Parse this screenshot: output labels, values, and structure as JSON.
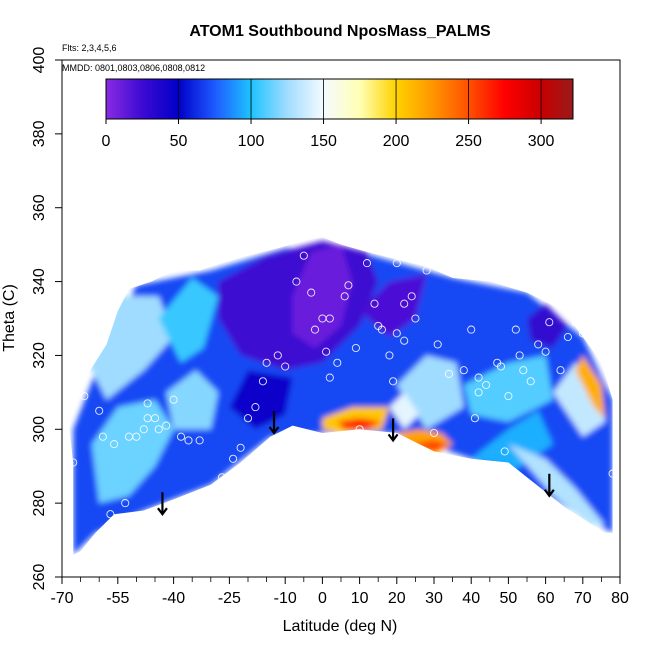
{
  "chart_data": {
    "type": "heatmap",
    "title": "ATOM1 Southbound NposMass_PALMS",
    "annotations": {
      "flights": "Flts: 2,3,4,5,6",
      "dates": "MMDD: 0801,0803,0806,0808,0812"
    },
    "xlabel": "Latitude (deg N)",
    "ylabel": "Theta (C)",
    "xlim": [
      -70,
      80
    ],
    "ylim": [
      260,
      400
    ],
    "x_ticks_major": [
      -70,
      -55,
      -40,
      -25,
      -10,
      0,
      10,
      20,
      30,
      40,
      50,
      60,
      70,
      80
    ],
    "x_ticks_minor": [
      -65,
      -60,
      -50,
      -45,
      -35,
      -30,
      -20,
      -15,
      -5,
      5,
      15,
      25,
      35,
      45,
      55,
      65,
      75
    ],
    "x_tick_labels": [
      "-70",
      "-55",
      "-40",
      "-25",
      "-10",
      "0",
      "10",
      "20",
      "30",
      "40",
      "50",
      "60",
      "70",
      "80"
    ],
    "y_ticks": [
      260,
      280,
      300,
      320,
      340,
      360,
      380,
      400
    ],
    "y_tick_labels": [
      "260",
      "280",
      "300",
      "320",
      "340",
      "360",
      "380",
      "400"
    ],
    "colorbar": {
      "range": [
        0,
        322
      ],
      "ticks": [
        0,
        50,
        100,
        150,
        200,
        250,
        300
      ],
      "tick_labels": [
        "0",
        "50",
        "100",
        "150",
        "200",
        "250",
        "300"
      ],
      "stops": [
        {
          "value": 0,
          "color": "#8a2be2"
        },
        {
          "value": 25,
          "color": "#3c0ad2"
        },
        {
          "value": 50,
          "color": "#0000c8"
        },
        {
          "value": 75,
          "color": "#1e5aff"
        },
        {
          "value": 100,
          "color": "#1ec3ff"
        },
        {
          "value": 125,
          "color": "#a0dcff"
        },
        {
          "value": 150,
          "color": "#f5fbff"
        },
        {
          "value": 175,
          "color": "#ffffb4"
        },
        {
          "value": 200,
          "color": "#ffd200"
        },
        {
          "value": 225,
          "color": "#ff9600"
        },
        {
          "value": 250,
          "color": "#ff5000"
        },
        {
          "value": 275,
          "color": "#ff0000"
        },
        {
          "value": 300,
          "color": "#c80000"
        },
        {
          "value": 322,
          "color": "#9a1a1a"
        }
      ]
    },
    "arrows": [
      {
        "lat": -43,
        "theta": 277
      },
      {
        "lat": -13,
        "theta": 299
      },
      {
        "lat": 19,
        "theta": 297
      },
      {
        "lat": 61,
        "theta": 282
      }
    ],
    "data_boundary": [
      [
        -67,
        266
      ],
      [
        -67,
        291
      ],
      [
        -68,
        300
      ],
      [
        -66,
        313
      ],
      [
        -63,
        315
      ],
      [
        -58,
        323
      ],
      [
        -55,
        332
      ],
      [
        -52,
        338
      ],
      [
        -46,
        340
      ],
      [
        -40,
        343
      ],
      [
        -33,
        343
      ],
      [
        -27,
        345
      ],
      [
        -20,
        347
      ],
      [
        -12,
        349
      ],
      [
        -5,
        351
      ],
      [
        0,
        352
      ],
      [
        5,
        350
      ],
      [
        12,
        348
      ],
      [
        20,
        346
      ],
      [
        28,
        344
      ],
      [
        35,
        341
      ],
      [
        45,
        340
      ],
      [
        55,
        337
      ],
      [
        65,
        332
      ],
      [
        70,
        325
      ],
      [
        75,
        318
      ],
      [
        78,
        308
      ],
      [
        78,
        290
      ],
      [
        78,
        272
      ],
      [
        76,
        272
      ],
      [
        65,
        279
      ],
      [
        50,
        291
      ],
      [
        40,
        292
      ],
      [
        30,
        294
      ],
      [
        20,
        299
      ],
      [
        10,
        300
      ],
      [
        0,
        299
      ],
      [
        -8,
        301
      ],
      [
        -14,
        298
      ],
      [
        -22,
        291
      ],
      [
        -30,
        285
      ],
      [
        -40,
        281
      ],
      [
        -48,
        278
      ],
      [
        -56,
        277
      ],
      [
        -61,
        272
      ],
      [
        -65,
        267
      ]
    ],
    "regions": [
      {
        "value": 70,
        "points": [
          [
            -67,
            266
          ],
          [
            -67,
            300
          ],
          [
            -58,
            323
          ],
          [
            -50,
            339
          ],
          [
            -30,
            343
          ],
          [
            -10,
            349
          ],
          [
            10,
            348
          ],
          [
            35,
            341
          ],
          [
            55,
            337
          ],
          [
            70,
            325
          ],
          [
            78,
            308
          ],
          [
            78,
            272
          ],
          [
            65,
            279
          ],
          [
            40,
            292
          ],
          [
            20,
            299
          ],
          [
            0,
            299
          ],
          [
            -14,
            298
          ],
          [
            -30,
            285
          ],
          [
            -48,
            278
          ],
          [
            -61,
            272
          ]
        ]
      },
      {
        "value": 115,
        "points": [
          [
            -60,
            280
          ],
          [
            -52,
            282
          ],
          [
            -45,
            290
          ],
          [
            -40,
            300
          ],
          [
            -45,
            308
          ],
          [
            -55,
            306
          ],
          [
            -62,
            296
          ]
        ]
      },
      {
        "value": 125,
        "points": [
          [
            -58,
            308
          ],
          [
            -48,
            316
          ],
          [
            -40,
            325
          ],
          [
            -44,
            336
          ],
          [
            -55,
            336
          ],
          [
            -64,
            320
          ]
        ]
      },
      {
        "value": 105,
        "points": [
          [
            -44,
            330
          ],
          [
            -35,
            341
          ],
          [
            -28,
            336
          ],
          [
            -32,
            322
          ],
          [
            -38,
            318
          ]
        ]
      },
      {
        "value": 120,
        "points": [
          [
            -40,
            300
          ],
          [
            -30,
            300
          ],
          [
            -28,
            310
          ],
          [
            -34,
            316
          ],
          [
            -42,
            310
          ]
        ]
      },
      {
        "value": 25,
        "points": [
          [
            -28,
            340
          ],
          [
            -15,
            347
          ],
          [
            0,
            351
          ],
          [
            12,
            348
          ],
          [
            15,
            340
          ],
          [
            10,
            328
          ],
          [
            0,
            318
          ],
          [
            -10,
            316
          ],
          [
            -22,
            320
          ],
          [
            -28,
            330
          ]
        ]
      },
      {
        "value": 10,
        "points": [
          [
            -8,
            336
          ],
          [
            -3,
            348
          ],
          [
            5,
            350
          ],
          [
            8,
            340
          ],
          [
            5,
            328
          ],
          [
            -2,
            322
          ],
          [
            -8,
            326
          ]
        ]
      },
      {
        "value": 45,
        "points": [
          [
            -25,
            306
          ],
          [
            -18,
            300
          ],
          [
            -10,
            304
          ],
          [
            -8,
            314
          ],
          [
            -20,
            316
          ]
        ]
      },
      {
        "value": 20,
        "points": [
          [
            10,
            332
          ],
          [
            18,
            340
          ],
          [
            28,
            342
          ],
          [
            25,
            330
          ],
          [
            18,
            325
          ]
        ]
      },
      {
        "value": 125,
        "points": [
          [
            20,
            312
          ],
          [
            28,
            320
          ],
          [
            36,
            318
          ],
          [
            38,
            306
          ],
          [
            28,
            300
          ]
        ]
      },
      {
        "value": 110,
        "points": [
          [
            38,
            312
          ],
          [
            50,
            318
          ],
          [
            60,
            320
          ],
          [
            62,
            308
          ],
          [
            50,
            302
          ],
          [
            40,
            304
          ]
        ]
      },
      {
        "value": 95,
        "points": [
          [
            40,
            292
          ],
          [
            50,
            300
          ],
          [
            58,
            305
          ],
          [
            62,
            296
          ],
          [
            52,
            289
          ]
        ]
      },
      {
        "value": 30,
        "points": [
          [
            55,
            330
          ],
          [
            60,
            334
          ],
          [
            66,
            328
          ],
          [
            62,
            322
          ],
          [
            56,
            324
          ]
        ]
      },
      {
        "value": 135,
        "points": [
          [
            62,
            310
          ],
          [
            68,
            318
          ],
          [
            74,
            314
          ],
          [
            76,
            302
          ],
          [
            70,
            298
          ]
        ]
      },
      {
        "value": 215,
        "points": [
          [
            68,
            316
          ],
          [
            70,
            320
          ],
          [
            75,
            312
          ],
          [
            76,
            303
          ],
          [
            73,
            306
          ]
        ]
      },
      {
        "value": 130,
        "points": [
          [
            50,
            296
          ],
          [
            60,
            292
          ],
          [
            68,
            284
          ],
          [
            76,
            274
          ],
          [
            72,
            274
          ],
          [
            62,
            282
          ]
        ]
      },
      {
        "value": 205,
        "points": [
          [
            0,
            303
          ],
          [
            8,
            306
          ],
          [
            18,
            306
          ],
          [
            16,
            300
          ],
          [
            5,
            299
          ],
          [
            0,
            300
          ]
        ]
      },
      {
        "value": 265,
        "points": [
          [
            4,
            302
          ],
          [
            10,
            303
          ],
          [
            16,
            302
          ],
          [
            12,
            300
          ],
          [
            6,
            300
          ]
        ]
      },
      {
        "value": 220,
        "points": [
          [
            20,
            299
          ],
          [
            26,
            300
          ],
          [
            32,
            299
          ],
          [
            35,
            296
          ],
          [
            30,
            293
          ],
          [
            24,
            295
          ]
        ]
      },
      {
        "value": 255,
        "points": [
          [
            24,
            296
          ],
          [
            30,
            297
          ],
          [
            34,
            296
          ],
          [
            30,
            294
          ]
        ]
      },
      {
        "value": 145,
        "points": [
          [
            18,
            306
          ],
          [
            22,
            310
          ],
          [
            26,
            304
          ],
          [
            22,
            300
          ]
        ]
      }
    ],
    "observations": [
      [
        -67,
        291
      ],
      [
        -66,
        313
      ],
      [
        -64,
        309
      ],
      [
        -60,
        305
      ],
      [
        -59,
        298
      ],
      [
        -56,
        296
      ],
      [
        -57,
        277
      ],
      [
        -53,
        280
      ],
      [
        -52,
        298
      ],
      [
        -50,
        298
      ],
      [
        -48,
        300
      ],
      [
        -47,
        303
      ],
      [
        -47,
        307
      ],
      [
        -45,
        303
      ],
      [
        -44,
        300
      ],
      [
        -42,
        301
      ],
      [
        -40,
        308
      ],
      [
        -38,
        298
      ],
      [
        -36,
        297
      ],
      [
        -33,
        297
      ],
      [
        -30,
        282
      ],
      [
        -27,
        287
      ],
      [
        -24,
        292
      ],
      [
        -22,
        295
      ],
      [
        -20,
        303
      ],
      [
        -18,
        306
      ],
      [
        -16,
        313
      ],
      [
        -15,
        318
      ],
      [
        -12,
        320
      ],
      [
        -10,
        317
      ],
      [
        -7,
        340
      ],
      [
        -5,
        347
      ],
      [
        -3,
        337
      ],
      [
        -2,
        327
      ],
      [
        0,
        330
      ],
      [
        1,
        321
      ],
      [
        2,
        330
      ],
      [
        2,
        314
      ],
      [
        4,
        318
      ],
      [
        6,
        336
      ],
      [
        7,
        339
      ],
      [
        9,
        322
      ],
      [
        10,
        300
      ],
      [
        12,
        345
      ],
      [
        14,
        334
      ],
      [
        15,
        328
      ],
      [
        16,
        327
      ],
      [
        18,
        320
      ],
      [
        19,
        313
      ],
      [
        20,
        326
      ],
      [
        20,
        345
      ],
      [
        22,
        334
      ],
      [
        22,
        324
      ],
      [
        24,
        336
      ],
      [
        25,
        330
      ],
      [
        28,
        343
      ],
      [
        30,
        299
      ],
      [
        31,
        323
      ],
      [
        34,
        315
      ],
      [
        38,
        316
      ],
      [
        40,
        327
      ],
      [
        41,
        303
      ],
      [
        42,
        310
      ],
      [
        42,
        314
      ],
      [
        44,
        312
      ],
      [
        47,
        318
      ],
      [
        48,
        317
      ],
      [
        49,
        294
      ],
      [
        50,
        309
      ],
      [
        52,
        327
      ],
      [
        53,
        320
      ],
      [
        54,
        316
      ],
      [
        56,
        313
      ],
      [
        58,
        323
      ],
      [
        60,
        321
      ],
      [
        61,
        329
      ],
      [
        64,
        316
      ],
      [
        66,
        325
      ],
      [
        68,
        329
      ],
      [
        70,
        326
      ],
      [
        78,
        288
      ]
    ]
  }
}
